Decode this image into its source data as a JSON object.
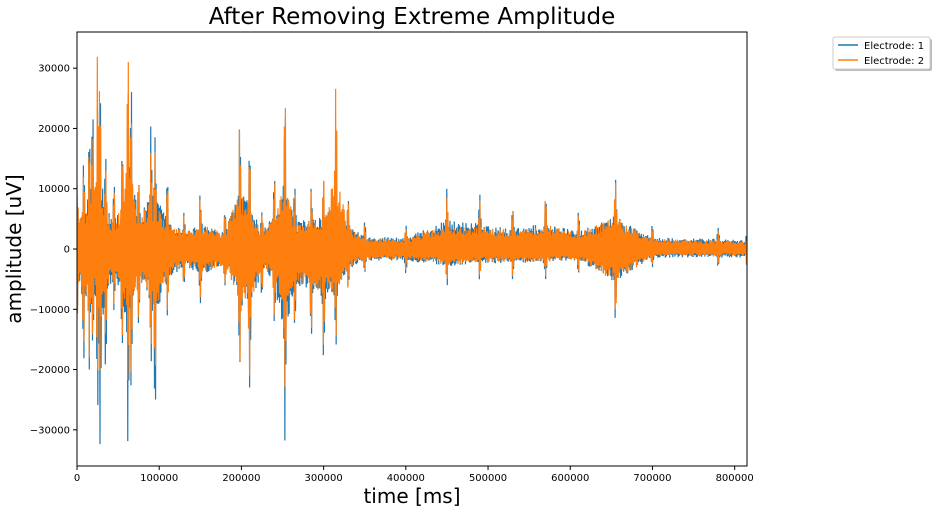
{
  "chart_data": {
    "type": "line",
    "title": "After Removing Extreme Amplitude",
    "xlabel": "time [ms]",
    "ylabel": "amplitude [uV]",
    "xlim": [
      0,
      815000
    ],
    "ylim": [
      -36000,
      36000
    ],
    "xticks": [
      0,
      100000,
      200000,
      300000,
      400000,
      500000,
      600000,
      700000,
      800000
    ],
    "yticks": [
      -30000,
      -20000,
      -10000,
      0,
      10000,
      20000,
      30000
    ],
    "grid": false,
    "legend_position": "upper-right-outside",
    "series": [
      {
        "name": "Electrode: 1",
        "color": "#1f77b4",
        "x": [
          0,
          8000,
          15000,
          19000,
          25000,
          28000,
          35000,
          45000,
          55000,
          62000,
          66000,
          75000,
          90000,
          95000,
          110000,
          130000,
          150000,
          180000,
          198000,
          210000,
          225000,
          240000,
          253000,
          265000,
          285000,
          300000,
          315000,
          330000,
          350000,
          400000,
          450000,
          490000,
          530000,
          570000,
          610000,
          655000,
          700000,
          780000,
          815000
        ],
        "peaks": [
          9000,
          14000,
          20000,
          22500,
          14000,
          28000,
          15000,
          10000,
          16000,
          28500,
          26500,
          12000,
          20500,
          18500,
          11000,
          6000,
          9000,
          6000,
          20500,
          16000,
          6000,
          12000,
          24000,
          10000,
          10000,
          12000,
          15000,
          8000,
          4500,
          4000,
          10000,
          9000,
          7000,
          9000,
          6000,
          11500,
          4000,
          3500,
          3000
        ],
        "troughs": [
          -10000,
          -18000,
          -20000,
          -15000,
          -25000,
          -32500,
          -18000,
          -10000,
          -15000,
          -32500,
          -22000,
          -12000,
          -18000,
          -27000,
          -11000,
          -6000,
          -9000,
          -6000,
          -19000,
          -23000,
          -7000,
          -12000,
          -32000,
          -13000,
          -14000,
          -18000,
          -16000,
          -7000,
          -4000,
          -4000,
          -6000,
          -5000,
          -5000,
          -5000,
          -4000,
          -11500,
          -3000,
          -3000,
          -3000
        ]
      },
      {
        "name": "Electrode: 2",
        "color": "#ff7f0e",
        "x": [
          0,
          8000,
          15000,
          19000,
          25000,
          28000,
          35000,
          45000,
          55000,
          62000,
          66000,
          75000,
          90000,
          95000,
          110000,
          130000,
          150000,
          180000,
          198000,
          210000,
          225000,
          240000,
          253000,
          265000,
          285000,
          300000,
          315000,
          330000,
          350000,
          400000,
          450000,
          490000,
          530000,
          570000,
          610000,
          655000,
          700000,
          780000,
          815000
        ],
        "peaks": [
          11000,
          12000,
          17000,
          20000,
          32500,
          26500,
          13000,
          9000,
          15500,
          32000,
          22000,
          11000,
          17000,
          16000,
          10000,
          5500,
          8500,
          5500,
          21000,
          15000,
          5500,
          11000,
          24000,
          9000,
          9500,
          11000,
          27000,
          7500,
          4000,
          3500,
          8500,
          8000,
          6500,
          8500,
          5500,
          11000,
          3500,
          3000,
          2500
        ],
        "troughs": [
          -11000,
          -16000,
          -18000,
          -14000,
          -22000,
          -20000,
          -15000,
          -9000,
          -14000,
          -22000,
          -21000,
          -11000,
          -17000,
          -22000,
          -10000,
          -5500,
          -8000,
          -5500,
          -18500,
          -21000,
          -6500,
          -11000,
          -23000,
          -12000,
          -13000,
          -16000,
          -15000,
          -6500,
          -3500,
          -3500,
          -5500,
          -4500,
          -4500,
          -4500,
          -3500,
          -11500,
          -2500,
          -2500,
          -2500
        ]
      }
    ]
  }
}
